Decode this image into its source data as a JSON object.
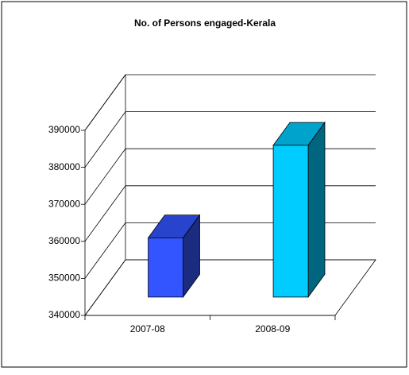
{
  "chart_data": {
    "type": "bar3d",
    "title": "No. of Persons engaged-Kerala",
    "categories": [
      "2007-08",
      "2008-09"
    ],
    "values": [
      356000,
      381000
    ],
    "colors": [
      "#3355ff",
      "#00ccff"
    ],
    "ylim": [
      340000,
      390000
    ],
    "yticks": [
      340000,
      350000,
      360000,
      370000,
      380000,
      390000
    ],
    "grid": true
  }
}
